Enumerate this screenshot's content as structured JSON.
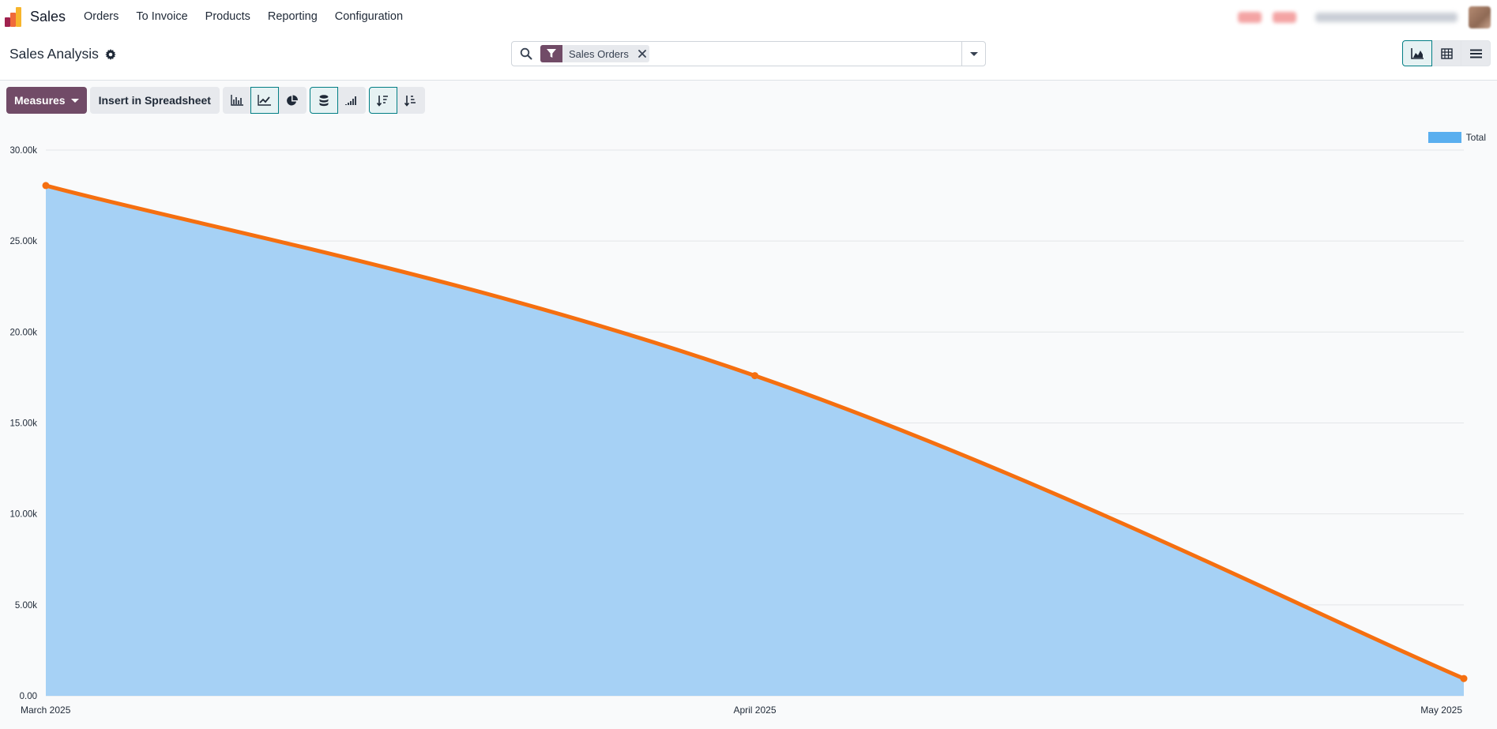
{
  "navbar": {
    "app_name": "Sales",
    "menu": [
      "Orders",
      "To Invoice",
      "Products",
      "Reporting",
      "Configuration"
    ]
  },
  "control": {
    "title": "Sales Analysis",
    "search": {
      "facet_label": "Sales Orders",
      "placeholder": ""
    }
  },
  "toolbar": {
    "measures_label": "Measures",
    "spreadsheet_label": "Insert in Spreadsheet"
  },
  "icons": {
    "app_logo": "sales-app-icon",
    "settings": "gear-icon",
    "search": "search-icon",
    "filter": "filter-icon",
    "remove": "close-icon",
    "dropdown": "caret-down-icon",
    "views": [
      "graph-view-icon",
      "pivot-view-icon",
      "list-view-icon"
    ],
    "chart_types": [
      "bar-chart-icon",
      "line-chart-icon",
      "pie-chart-icon"
    ],
    "chart_options": [
      "stacked-icon",
      "cumulative-icon"
    ],
    "sort": [
      "sort-descending-icon",
      "sort-ascending-icon"
    ]
  },
  "colors": {
    "brand": "#714b67",
    "accent": "#017e84",
    "area_fill": "#a6d1f5",
    "line": "#f56f10",
    "legend_swatch": "#5aafef"
  },
  "chart_data": {
    "type": "area",
    "categories": [
      "March 2025",
      "April 2025",
      "May 2025"
    ],
    "series": [
      {
        "name": "Total",
        "values": [
          28050,
          17600,
          950
        ]
      }
    ],
    "y_ticks": [
      "0.00",
      "5.00k",
      "10.00k",
      "15.00k",
      "20.00k",
      "25.00k",
      "30.00k"
    ],
    "ylim": [
      0,
      30000
    ],
    "grid": true,
    "legend": "top-right"
  }
}
